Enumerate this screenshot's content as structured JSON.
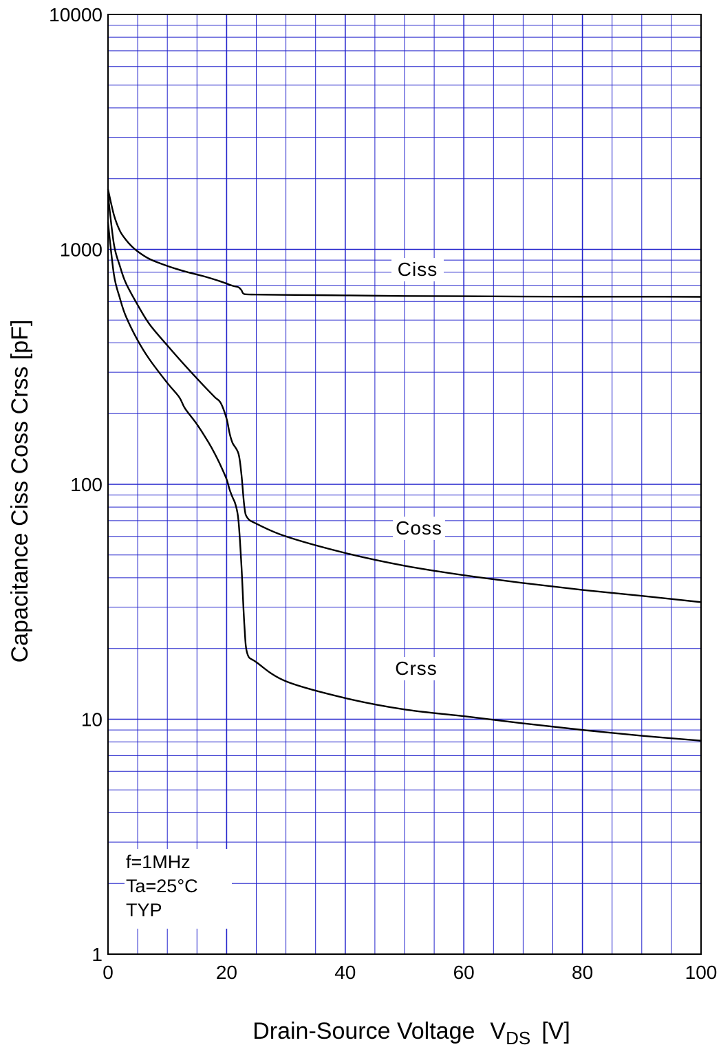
{
  "chart_data": {
    "type": "line",
    "title": "",
    "xlabel": "Drain-Source Voltage",
    "xlabel_symbol": "V",
    "xlabel_subscript": "DS",
    "xlabel_unit": "[V]",
    "ylabel": "Capacitance  Ciss  Coss  Crss  [pF]",
    "xlim": [
      0,
      100
    ],
    "ylim": [
      1,
      10000
    ],
    "y_scale": "log",
    "x_ticks": [
      0,
      20,
      40,
      60,
      80,
      100
    ],
    "y_ticks": [
      1,
      10,
      100,
      1000,
      10000
    ],
    "grid": true,
    "colors": {
      "grid": "#2222cc",
      "axes": "#000000",
      "series": "#000000"
    },
    "conditions": [
      "f=1MHz",
      "Ta=25°C",
      "TYP"
    ],
    "series": [
      {
        "name": "Ciss",
        "x": [
          0,
          1,
          2,
          3,
          4,
          5,
          7,
          10,
          13,
          16,
          19,
          21,
          22,
          22.5,
          23,
          25,
          30,
          40,
          50,
          60,
          70,
          80,
          90,
          100
        ],
        "y": [
          1800,
          1400,
          1200,
          1100,
          1030,
          980,
          910,
          850,
          805,
          770,
          730,
          700,
          690,
          670,
          645,
          642,
          640,
          637,
          633,
          632,
          630,
          629,
          629,
          628
        ]
      },
      {
        "name": "Coss",
        "x": [
          0,
          1,
          2,
          3,
          5,
          7,
          10,
          13,
          16,
          18,
          19,
          20,
          20.5,
          21,
          22,
          22.5,
          23,
          23.5,
          25,
          30,
          40,
          50,
          60,
          70,
          80,
          90,
          100
        ],
        "y": [
          1700,
          1050,
          850,
          720,
          580,
          480,
          390,
          320,
          265,
          235,
          222,
          190,
          165,
          150,
          135,
          110,
          80,
          72,
          68,
          60,
          51,
          45,
          41,
          38,
          35.5,
          33.5,
          31.5
        ]
      },
      {
        "name": "Crss",
        "x": [
          0,
          1,
          2,
          3,
          5,
          7,
          10,
          12,
          13,
          15,
          17,
          18,
          19,
          20,
          20.5,
          21,
          21.5,
          22,
          22.5,
          23,
          23.5,
          25,
          30,
          40,
          50,
          60,
          70,
          80,
          90,
          100
        ],
        "y": [
          1300,
          780,
          620,
          520,
          410,
          340,
          270,
          235,
          210,
          180,
          150,
          135,
          120,
          105,
          95,
          88,
          82,
          70,
          45,
          25,
          19,
          17.5,
          14.5,
          12.3,
          11,
          10.3,
          9.6,
          9,
          8.5,
          8.1
        ]
      }
    ]
  }
}
